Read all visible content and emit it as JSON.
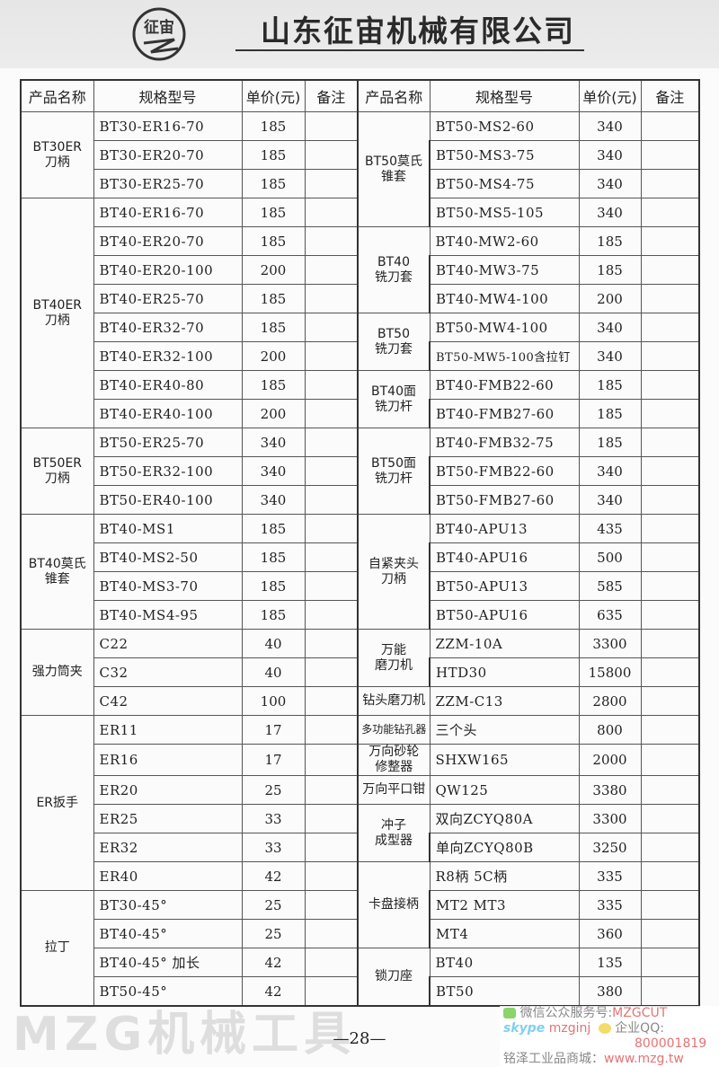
{
  "header": {
    "company": "山东征宙机械有限公司",
    "logo_text": "征宙"
  },
  "columns": [
    "产品名称",
    "规格型号",
    "单价(元)",
    "备注",
    "产品名称",
    "规格型号",
    "单价(元)",
    "备注"
  ],
  "left": [
    {
      "name": "BT30ER\n刀柄",
      "items": [
        [
          "BT30-ER16-70",
          "185"
        ],
        [
          "BT30-ER20-70",
          "185"
        ],
        [
          "BT30-ER25-70",
          "185"
        ]
      ]
    },
    {
      "name": "BT40ER\n刀柄",
      "items": [
        [
          "BT40-ER16-70",
          "185"
        ],
        [
          "BT40-ER20-70",
          "185"
        ],
        [
          "BT40-ER20-100",
          "200"
        ],
        [
          "BT40-ER25-70",
          "185"
        ],
        [
          "BT40-ER32-70",
          "185"
        ],
        [
          "BT40-ER32-100",
          "200"
        ],
        [
          "BT40-ER40-80",
          "185"
        ],
        [
          "BT40-ER40-100",
          "200"
        ]
      ]
    },
    {
      "name": "BT50ER\n刀柄",
      "items": [
        [
          "BT50-ER25-70",
          "340"
        ],
        [
          "BT50-ER32-100",
          "340"
        ],
        [
          "BT50-ER40-100",
          "340"
        ]
      ]
    },
    {
      "name": "BT40莫氏\n锥套",
      "items": [
        [
          "BT40-MS1",
          "185"
        ],
        [
          "BT40-MS2-50",
          "185"
        ],
        [
          "BT40-MS3-70",
          "185"
        ],
        [
          "BT40-MS4-95",
          "185"
        ]
      ]
    },
    {
      "name": "强力筒夹",
      "items": [
        [
          "C22",
          "40"
        ],
        [
          "C32",
          "40"
        ],
        [
          "C42",
          "100"
        ]
      ]
    },
    {
      "name": "ER扳手",
      "items": [
        [
          "ER11",
          "17"
        ],
        [
          "ER16",
          "17"
        ],
        [
          "ER20",
          "25"
        ],
        [
          "ER25",
          "33"
        ],
        [
          "ER32",
          "33"
        ],
        [
          "ER40",
          "42"
        ]
      ]
    },
    {
      "name": "拉丁",
      "items": [
        [
          "BT30-45°",
          "25"
        ],
        [
          "BT40-45°",
          "25"
        ],
        [
          "BT40-45°  加长",
          "42"
        ],
        [
          "BT50-45°",
          "42"
        ]
      ]
    }
  ],
  "right": [
    {
      "name": "BT50莫氏\n锥套",
      "items": [
        [
          "BT50-MS2-60",
          "340"
        ],
        [
          "BT50-MS3-75",
          "340"
        ],
        [
          "BT50-MS4-75",
          "340"
        ],
        [
          "BT50-MS5-105",
          "340"
        ]
      ]
    },
    {
      "name": "BT40\n铣刀套",
      "items": [
        [
          "BT40-MW2-60",
          "185"
        ],
        [
          "BT40-MW3-75",
          "185"
        ],
        [
          "BT40-MW4-100",
          "200"
        ]
      ]
    },
    {
      "name": "BT50\n铣刀套",
      "items": [
        [
          "BT50-MW4-100",
          "340"
        ],
        [
          "BT50-MW5-100含拉钉",
          "340"
        ]
      ]
    },
    {
      "name": "BT40面\n铣刀杆",
      "items": [
        [
          "BT40-FMB22-60",
          "185"
        ],
        [
          "BT40-FMB27-60",
          "185"
        ]
      ]
    },
    {
      "name": "BT50面\n铣刀杆",
      "items": [
        [
          "BT40-FMB32-75",
          "185"
        ],
        [
          "BT50-FMB22-60",
          "340"
        ],
        [
          "BT50-FMB27-60",
          "340"
        ]
      ]
    },
    {
      "name": "自紧夹头\n刀柄",
      "items": [
        [
          "BT40-APU13",
          "435"
        ],
        [
          "BT40-APU16",
          "500"
        ],
        [
          "BT50-APU13",
          "585"
        ],
        [
          "BT50-APU16",
          "635"
        ]
      ]
    },
    {
      "name": "万能\n磨刀机",
      "items": [
        [
          "ZZM-10A",
          "3300"
        ],
        [
          "HTD30",
          "15800"
        ]
      ]
    },
    {
      "name": "钻头磨刀机",
      "items": [
        [
          "ZZM-C13",
          "2800"
        ]
      ]
    },
    {
      "name": "多功能钻孔器",
      "items": [
        [
          "三个头",
          "800"
        ]
      ]
    },
    {
      "name": "万向砂轮\n修整器",
      "items": [
        [
          "SHXW165",
          "2000"
        ]
      ]
    },
    {
      "name": "万向平口钳",
      "items": [
        [
          "QW125",
          "3380"
        ]
      ]
    },
    {
      "name": "冲子\n成型器",
      "items": [
        [
          "双向ZCYQ80A",
          "3300"
        ],
        [
          "单向ZCYQ80B",
          "3250"
        ]
      ]
    },
    {
      "name": "卡盘接柄",
      "items": [
        [
          "R8柄  5C柄",
          "335"
        ],
        [
          "MT2  MT3",
          "335"
        ],
        [
          "MT4",
          "360"
        ]
      ]
    },
    {
      "name": "锁刀座",
      "items": [
        [
          "BT40",
          "135"
        ],
        [
          "BT50",
          "380"
        ]
      ]
    }
  ],
  "watermark": "MZG机械工具",
  "page_number": "—28—",
  "promo": {
    "wechat": "微信公众服务号:",
    "wechat_id": "MZGCUT",
    "skype_label": "skype",
    "skype_id": "mzginj",
    "qq_label": "企业QQ:",
    "qq": "800001819",
    "mall": "铭泽工业品商城：",
    "url": "www.mzg.tw"
  }
}
